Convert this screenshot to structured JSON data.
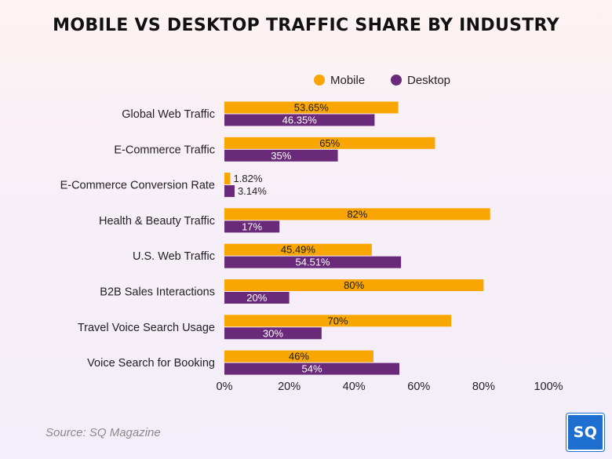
{
  "title": "MOBILE VS DESKTOP TRAFFIC SHARE BY INDUSTRY",
  "source": "Source: SQ Magazine",
  "logo_text": "SQ",
  "colors": {
    "mobile": "#F9A602",
    "desktop": "#6A2A7A",
    "text": "#222222",
    "grid": "#d6d0da"
  },
  "chart_data": {
    "type": "bar",
    "orientation": "horizontal",
    "categories": [
      "Global Web Traffic",
      "E-Commerce Traffic",
      "E-Commerce Conversion Rate",
      "Health & Beauty Traffic",
      "U.S. Web Traffic",
      "B2B Sales Interactions",
      "Travel Voice Search Usage",
      "Voice Search for Booking"
    ],
    "series": [
      {
        "name": "Mobile",
        "values": [
          53.65,
          65,
          1.82,
          82,
          45.49,
          80,
          70,
          46
        ],
        "labels": [
          "53.65%",
          "65%",
          "1.82%",
          "82%",
          "45.49%",
          "80%",
          "70%",
          "46%"
        ]
      },
      {
        "name": "Desktop",
        "values": [
          46.35,
          35,
          3.14,
          17,
          54.51,
          20,
          30,
          54
        ],
        "labels": [
          "46.35%",
          "35%",
          "3.14%",
          "17%",
          "54.51%",
          "20%",
          "30%",
          "54%"
        ]
      }
    ],
    "xlim": [
      0,
      100
    ],
    "x_ticks": [
      "0%",
      "20%",
      "40%",
      "60%",
      "80%",
      "100%"
    ],
    "legend_position": "top-right",
    "grid": false
  }
}
